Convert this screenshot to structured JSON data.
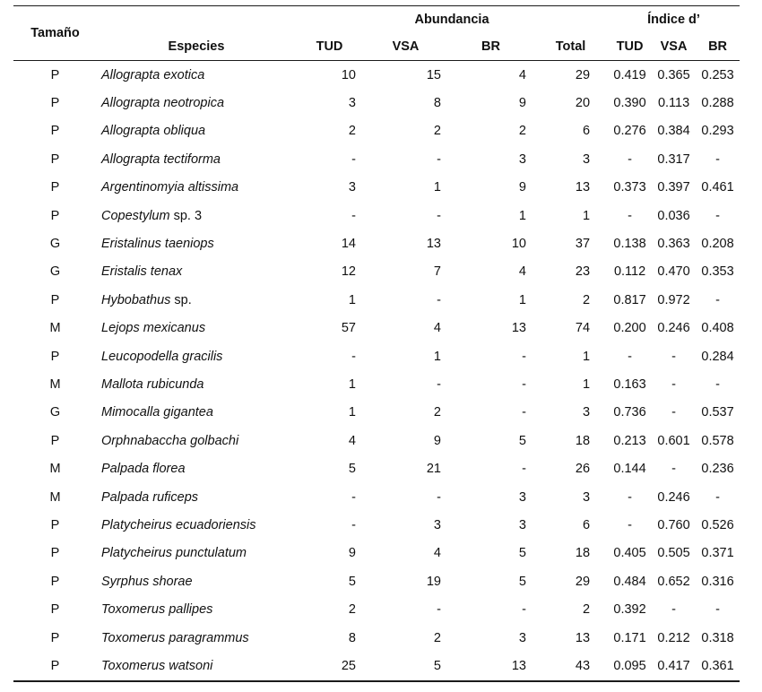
{
  "table": {
    "header": {
      "tamano": "Tamaño",
      "especies": "Especies",
      "abundancia": "Abundancia",
      "indice_d": "Índice d’",
      "tud": "TUD",
      "vsa": "VSA",
      "br": "BR",
      "total": "Total",
      "d_tud": "TUD",
      "d_vsa": "VSA",
      "d_br": "BR"
    },
    "rows": [
      {
        "size": "P",
        "sp_i": "Allograpta exotica",
        "sp_r": "",
        "tud": "10",
        "vsa": "15",
        "br": "4",
        "total": "29",
        "d_tud": "0.419",
        "d_vsa": "0.365",
        "d_br": "0.253"
      },
      {
        "size": "P",
        "sp_i": "Allograpta neotropica",
        "sp_r": "",
        "tud": "3",
        "vsa": "8",
        "br": "9",
        "total": "20",
        "d_tud": "0.390",
        "d_vsa": "0.113",
        "d_br": "0.288"
      },
      {
        "size": "P",
        "sp_i": "Allograpta obliqua",
        "sp_r": "",
        "tud": "2",
        "vsa": "2",
        "br": "2",
        "total": "6",
        "d_tud": "0.276",
        "d_vsa": "0.384",
        "d_br": "0.293"
      },
      {
        "size": "P",
        "sp_i": "Allograpta tectiforma",
        "sp_r": "",
        "tud": "-",
        "vsa": "-",
        "br": "3",
        "total": "3",
        "d_tud": "-",
        "d_vsa": "0.317",
        "d_br": "-"
      },
      {
        "size": "P",
        "sp_i": "Argentinomyia altissima",
        "sp_r": "",
        "tud": "3",
        "vsa": "1",
        "br": "9",
        "total": "13",
        "d_tud": "0.373",
        "d_vsa": "0.397",
        "d_br": "0.461"
      },
      {
        "size": "P",
        "sp_i": "Copestylum",
        "sp_r": " sp. 3",
        "tud": "-",
        "vsa": "-",
        "br": "1",
        "total": "1",
        "d_tud": "-",
        "d_vsa": "0.036",
        "d_br": "-"
      },
      {
        "size": "G",
        "sp_i": "Eristalinus taeniops",
        "sp_r": "",
        "tud": "14",
        "vsa": "13",
        "br": "10",
        "total": "37",
        "d_tud": "0.138",
        "d_vsa": "0.363",
        "d_br": "0.208"
      },
      {
        "size": "G",
        "sp_i": "Eristalis tenax",
        "sp_r": "",
        "tud": "12",
        "vsa": "7",
        "br": "4",
        "total": "23",
        "d_tud": "0.112",
        "d_vsa": "0.470",
        "d_br": "0.353"
      },
      {
        "size": "P",
        "sp_i": "Hybobathus",
        "sp_r": " sp.",
        "tud": "1",
        "vsa": "-",
        "br": "1",
        "total": "2",
        "d_tud": "0.817",
        "d_vsa": "0.972",
        "d_br": "-"
      },
      {
        "size": "M",
        "sp_i": "Lejops mexicanus",
        "sp_r": "",
        "tud": "57",
        "vsa": "4",
        "br": "13",
        "total": "74",
        "d_tud": "0.200",
        "d_vsa": "0.246",
        "d_br": "0.408"
      },
      {
        "size": "P",
        "sp_i": "Leucopodella gracilis",
        "sp_r": "",
        "tud": "-",
        "vsa": "1",
        "br": "-",
        "total": "1",
        "d_tud": "-",
        "d_vsa": "-",
        "d_br": "0.284"
      },
      {
        "size": "M",
        "sp_i": "Mallota rubicunda",
        "sp_r": "",
        "tud": "1",
        "vsa": "-",
        "br": "-",
        "total": "1",
        "d_tud": "0.163",
        "d_vsa": "-",
        "d_br": "-"
      },
      {
        "size": "G",
        "sp_i": "Mimocalla gigantea",
        "sp_r": "",
        "tud": "1",
        "vsa": "2",
        "br": "-",
        "total": "3",
        "d_tud": "0.736",
        "d_vsa": "-",
        "d_br": "0.537"
      },
      {
        "size": "P",
        "sp_i": "Orphnabaccha golbachi",
        "sp_r": "",
        "tud": "4",
        "vsa": "9",
        "br": "5",
        "total": "18",
        "d_tud": "0.213",
        "d_vsa": "0.601",
        "d_br": "0.578"
      },
      {
        "size": "M",
        "sp_i": "Palpada florea",
        "sp_r": "",
        "tud": "5",
        "vsa": "21",
        "br": "-",
        "total": "26",
        "d_tud": "0.144",
        "d_vsa": "-",
        "d_br": "0.236"
      },
      {
        "size": "M",
        "sp_i": "Palpada ruficeps",
        "sp_r": "",
        "tud": "-",
        "vsa": "-",
        "br": "3",
        "total": "3",
        "d_tud": "-",
        "d_vsa": "0.246",
        "d_br": "-"
      },
      {
        "size": "P",
        "sp_i": "Platycheirus ecuadoriensis",
        "sp_r": "",
        "tud": "-",
        "vsa": "3",
        "br": "3",
        "total": "6",
        "d_tud": "-",
        "d_vsa": "0.760",
        "d_br": "0.526"
      },
      {
        "size": "P",
        "sp_i": "Platycheirus punctulatum",
        "sp_r": "",
        "tud": "9",
        "vsa": "4",
        "br": "5",
        "total": "18",
        "d_tud": "0.405",
        "d_vsa": "0.505",
        "d_br": "0.371"
      },
      {
        "size": "P",
        "sp_i": "Syrphus shorae",
        "sp_r": "",
        "tud": "5",
        "vsa": "19",
        "br": "5",
        "total": "29",
        "d_tud": "0.484",
        "d_vsa": "0.652",
        "d_br": "0.316"
      },
      {
        "size": "P",
        "sp_i": "Toxomerus pallipes",
        "sp_r": "",
        "tud": "2",
        "vsa": "-",
        "br": "-",
        "total": "2",
        "d_tud": "0.392",
        "d_vsa": "-",
        "d_br": "-"
      },
      {
        "size": "P",
        "sp_i": "Toxomerus paragrammus",
        "sp_r": "",
        "tud": "8",
        "vsa": "2",
        "br": "3",
        "total": "13",
        "d_tud": "0.171",
        "d_vsa": "0.212",
        "d_br": "0.318"
      },
      {
        "size": "P",
        "sp_i": "Toxomerus watsoni",
        "sp_r": "",
        "tud": "25",
        "vsa": "5",
        "br": "13",
        "total": "43",
        "d_tud": "0.095",
        "d_vsa": "0.417",
        "d_br": "0.361"
      }
    ]
  }
}
